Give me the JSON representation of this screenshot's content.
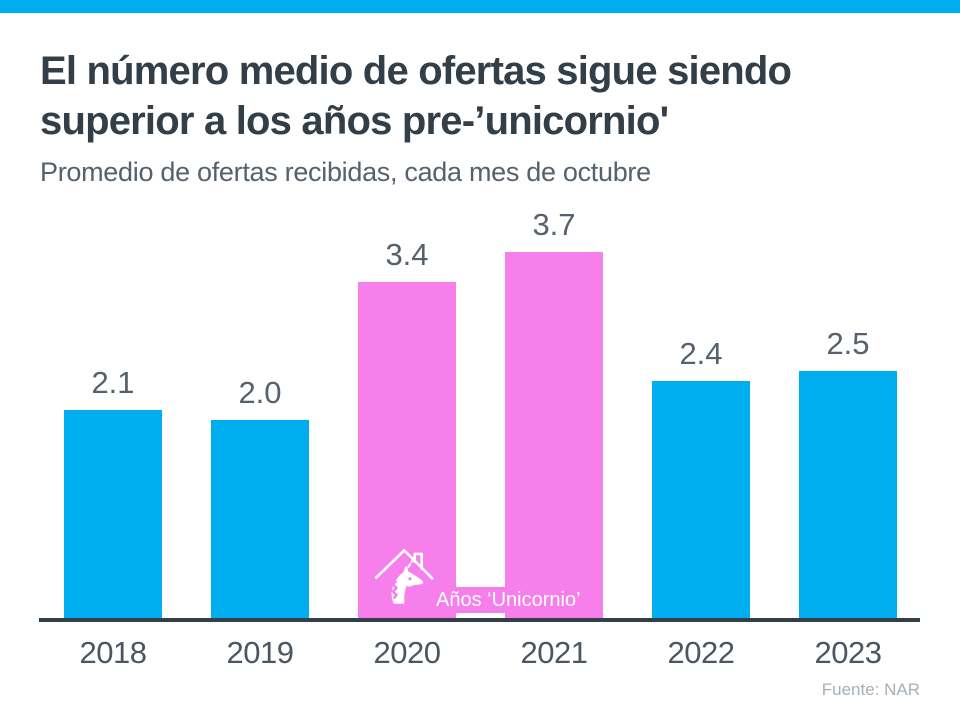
{
  "page": {
    "background": "#FFFFFF",
    "top_bar_color": "#00AEEF"
  },
  "header": {
    "title_line1": "El número medio de ofertas sigue siendo",
    "title_line2": "superior a los años pre-’unicornio'",
    "subtitle": "Promedio de ofertas recibidas, cada mes de octubre",
    "title_color": "#333F48",
    "subtitle_color": "#55616C"
  },
  "chart_data": {
    "type": "bar",
    "title": "El número medio de ofertas sigue siendo superior a los años pre-’unicornio'",
    "subtitle": "Promedio de ofertas recibidas, cada mes de octubre",
    "categories": [
      "2018",
      "2019",
      "2020",
      "2021",
      "2022",
      "2023"
    ],
    "values": [
      2.1,
      2.0,
      3.4,
      3.7,
      2.4,
      2.5
    ],
    "value_labels": [
      "2.1",
      "2.0",
      "3.4",
      "3.7",
      "2.4",
      "2.5"
    ],
    "unicorn_years": [
      "2020",
      "2021"
    ],
    "bar_color_default": "#00AEEF",
    "bar_color_unicorn": "#F77FEC",
    "value_label_color": "#56616D",
    "tick_label_color": "#4B5661",
    "axis_color": "#333F48",
    "xlabel": "",
    "ylabel": "",
    "ylim": [
      0,
      3.7
    ],
    "grid": false,
    "legend": false,
    "annotation": {
      "label": "Años ‘Unicornio’",
      "icon": "unicorn-house-icon",
      "text_color": "#FFFFFF"
    }
  },
  "footer": {
    "source": "Fuente: NAR",
    "source_color": "#A6B0B9"
  }
}
